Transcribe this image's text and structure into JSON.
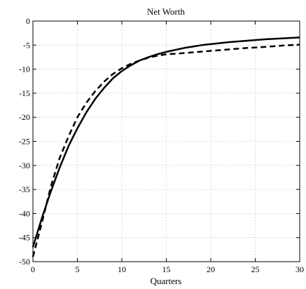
{
  "chart_data": {
    "type": "line",
    "title": "Net Worth",
    "xlabel": "Quarters",
    "ylabel": "",
    "xlim": [
      0,
      30
    ],
    "ylim": [
      -50,
      0
    ],
    "x_ticks": [
      0,
      5,
      10,
      15,
      20,
      25,
      30
    ],
    "y_ticks": [
      0,
      -5,
      -10,
      -15,
      -20,
      -25,
      -30,
      -35,
      -40,
      -45,
      -50
    ],
    "grid": true,
    "series": [
      {
        "style": "solid",
        "color": "#000000",
        "x": [
          0,
          1,
          2,
          3,
          4,
          5,
          6,
          7,
          8,
          9,
          10,
          11,
          12,
          13,
          14,
          15,
          16,
          17,
          18,
          19,
          20,
          22,
          24,
          26,
          28,
          30
        ],
        "y": [
          -47.0,
          -41.0,
          -35.5,
          -30.5,
          -26.0,
          -22.3,
          -19.0,
          -16.2,
          -13.9,
          -11.9,
          -10.4,
          -9.2,
          -8.2,
          -7.5,
          -6.9,
          -6.4,
          -6.0,
          -5.6,
          -5.3,
          -5.0,
          -4.8,
          -4.4,
          -4.1,
          -3.8,
          -3.6,
          -3.4
        ]
      },
      {
        "style": "dashed",
        "color": "#000000",
        "x": [
          0,
          1,
          2,
          3,
          4,
          5,
          6,
          7,
          8,
          9,
          10,
          11,
          12,
          13,
          14,
          15,
          16,
          18,
          20,
          22,
          24,
          26,
          28,
          30
        ],
        "y": [
          -49.0,
          -42.0,
          -34.5,
          -28.5,
          -24.0,
          -20.0,
          -17.0,
          -14.6,
          -12.6,
          -11.0,
          -9.8,
          -8.9,
          -8.2,
          -7.6,
          -7.2,
          -6.9,
          -6.8,
          -6.5,
          -6.2,
          -5.9,
          -5.6,
          -5.4,
          -5.1,
          -4.9
        ]
      }
    ]
  }
}
